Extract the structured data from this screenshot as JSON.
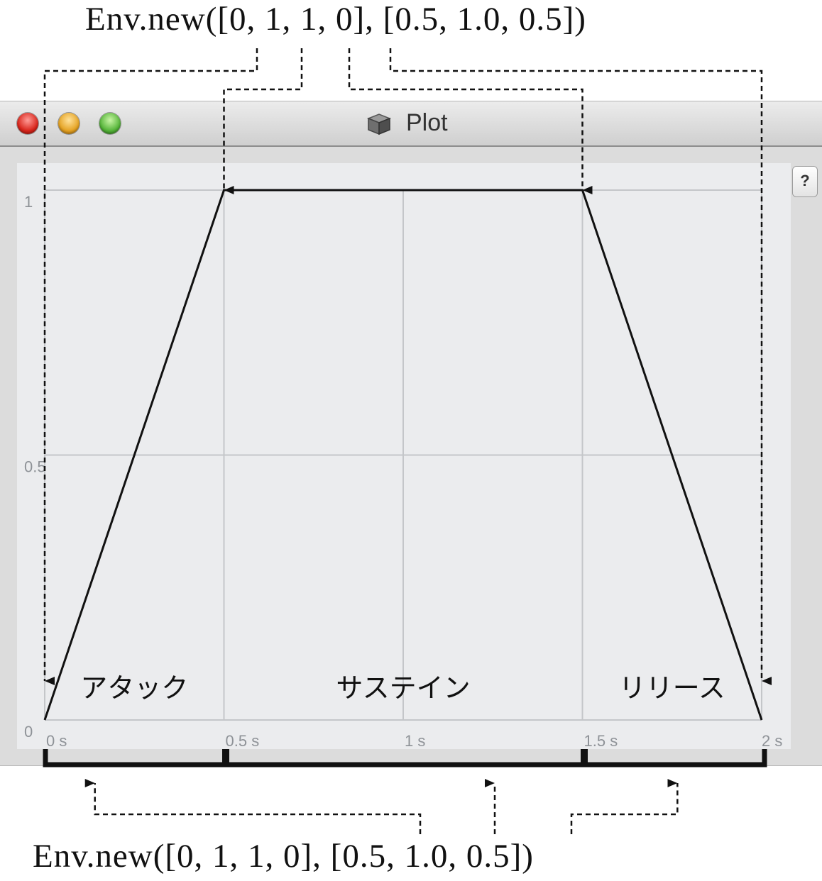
{
  "caption_top": "Env.new([0, 1, 1, 0], [0.5, 1.0, 0.5])",
  "caption_bottom": "Env.new([0, 1, 1, 0], [0.5, 1.0, 0.5])",
  "window": {
    "title": "Plot",
    "help_label": "?",
    "icon": "cube-icon"
  },
  "chart_data": {
    "type": "line",
    "x": [
      0,
      0.5,
      1.5,
      2
    ],
    "y": [
      0,
      1,
      1,
      0
    ],
    "x_ticks": [
      "0 s",
      "0.5 s",
      "1 s",
      "1.5 s",
      "2 s"
    ],
    "y_ticks": [
      "0",
      "0.5",
      "1"
    ],
    "xlim": [
      0,
      2
    ],
    "ylim": [
      0,
      1
    ],
    "grid": true,
    "segments": [
      {
        "label": "アタック",
        "start": 0,
        "end": 0.5
      },
      {
        "label": "サステイン",
        "start": 0.5,
        "end": 1.5
      },
      {
        "label": "リリース",
        "start": 1.5,
        "end": 2
      }
    ]
  }
}
